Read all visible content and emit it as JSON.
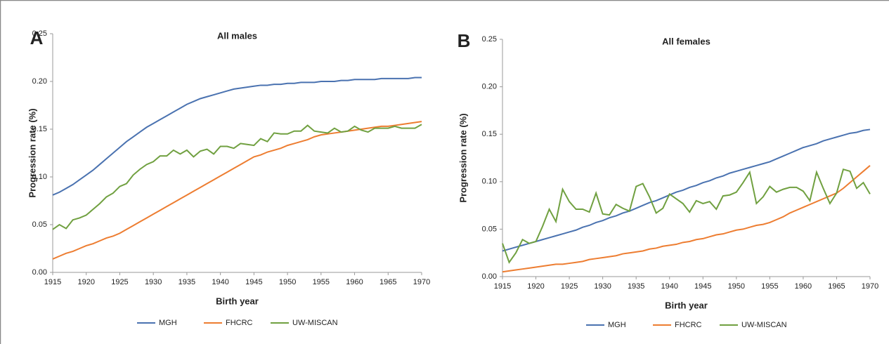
{
  "chart_data": [
    {
      "type": "line",
      "panel_label": "A",
      "title": "All males",
      "x_label": "Birth year",
      "y_label": "Progression rate (%)",
      "legend": "bottom",
      "x": [
        1915,
        1916,
        1917,
        1918,
        1919,
        1920,
        1921,
        1922,
        1923,
        1924,
        1925,
        1926,
        1927,
        1928,
        1929,
        1930,
        1931,
        1932,
        1933,
        1934,
        1935,
        1936,
        1937,
        1938,
        1939,
        1940,
        1941,
        1942,
        1943,
        1944,
        1945,
        1946,
        1947,
        1948,
        1949,
        1950,
        1951,
        1952,
        1953,
        1954,
        1955,
        1956,
        1957,
        1958,
        1959,
        1960,
        1961,
        1962,
        1963,
        1964,
        1965,
        1966,
        1967,
        1968,
        1969,
        1970
      ],
      "xlim": [
        1915,
        1970
      ],
      "xticks": [
        1915,
        1920,
        1925,
        1930,
        1935,
        1940,
        1945,
        1950,
        1955,
        1960,
        1965,
        1970
      ],
      "ylim": [
        0,
        0.25
      ],
      "yticks": [
        {
          "value": 0,
          "label": "0.00"
        },
        0.05,
        {
          "value": 0.1,
          "label": "0.10"
        },
        0.15,
        {
          "value": 0.2,
          "label": "0.20"
        },
        0.25
      ],
      "series": [
        {
          "name": "MGH",
          "color": "#4a72b0",
          "values": [
            0.081,
            0.084,
            0.088,
            0.092,
            0.097,
            0.102,
            0.107,
            0.113,
            0.119,
            0.125,
            0.131,
            0.137,
            0.142,
            0.147,
            0.152,
            0.156,
            0.16,
            0.164,
            0.168,
            0.172,
            0.176,
            0.179,
            0.182,
            0.184,
            0.186,
            0.188,
            0.19,
            0.192,
            0.193,
            0.194,
            0.195,
            0.196,
            0.196,
            0.197,
            0.197,
            0.198,
            0.198,
            0.199,
            0.199,
            0.199,
            0.2,
            0.2,
            0.2,
            0.201,
            0.201,
            0.202,
            0.202,
            0.202,
            0.202,
            0.203,
            0.203,
            0.203,
            0.203,
            0.203,
            0.204,
            0.204
          ]
        },
        {
          "name": "FHCRC",
          "color": "#ed7d31",
          "values": [
            0.014,
            0.017,
            0.02,
            0.022,
            0.025,
            0.028,
            0.03,
            0.033,
            0.036,
            0.038,
            0.041,
            0.045,
            0.049,
            0.053,
            0.057,
            0.061,
            0.065,
            0.069,
            0.073,
            0.077,
            0.081,
            0.085,
            0.089,
            0.093,
            0.097,
            0.101,
            0.105,
            0.109,
            0.113,
            0.117,
            0.121,
            0.123,
            0.126,
            0.128,
            0.13,
            0.133,
            0.135,
            0.137,
            0.139,
            0.142,
            0.144,
            0.145,
            0.146,
            0.147,
            0.148,
            0.149,
            0.15,
            0.151,
            0.152,
            0.153,
            0.153,
            0.154,
            0.155,
            0.156,
            0.157,
            0.158
          ]
        },
        {
          "name": "UW-MISCAN",
          "color": "#70a040",
          "values": [
            0.045,
            0.05,
            0.046,
            0.055,
            0.057,
            0.06,
            0.066,
            0.072,
            0.079,
            0.083,
            0.09,
            0.093,
            0.102,
            0.108,
            0.113,
            0.116,
            0.122,
            0.122,
            0.128,
            0.124,
            0.128,
            0.121,
            0.127,
            0.129,
            0.124,
            0.132,
            0.132,
            0.13,
            0.135,
            0.134,
            0.133,
            0.14,
            0.137,
            0.146,
            0.145,
            0.145,
            0.148,
            0.148,
            0.154,
            0.148,
            0.147,
            0.146,
            0.151,
            0.147,
            0.148,
            0.153,
            0.149,
            0.147,
            0.151,
            0.151,
            0.151,
            0.153,
            0.151,
            0.151,
            0.151,
            0.155
          ]
        }
      ]
    },
    {
      "type": "line",
      "panel_label": "B",
      "title": "All females",
      "x_label": "Birth year",
      "y_label": "Progression rate (%)",
      "legend": "bottom",
      "x": [
        1915,
        1916,
        1917,
        1918,
        1919,
        1920,
        1921,
        1922,
        1923,
        1924,
        1925,
        1926,
        1927,
        1928,
        1929,
        1930,
        1931,
        1932,
        1933,
        1934,
        1935,
        1936,
        1937,
        1938,
        1939,
        1940,
        1941,
        1942,
        1943,
        1944,
        1945,
        1946,
        1947,
        1948,
        1949,
        1950,
        1951,
        1952,
        1953,
        1954,
        1955,
        1956,
        1957,
        1958,
        1959,
        1960,
        1961,
        1962,
        1963,
        1964,
        1965,
        1966,
        1967,
        1968,
        1969,
        1970
      ],
      "xlim": [
        1915,
        1970
      ],
      "xticks": [
        1915,
        1920,
        1925,
        1930,
        1935,
        1940,
        1945,
        1950,
        1955,
        1960,
        1965,
        1970
      ],
      "ylim": [
        0,
        0.25
      ],
      "yticks": [
        {
          "value": 0,
          "label": "0.00"
        },
        0.05,
        {
          "value": 0.1,
          "label": "0.10"
        },
        0.15,
        {
          "value": 0.2,
          "label": "0.20"
        },
        0.25
      ],
      "series": [
        {
          "name": "MGH",
          "color": "#4a72b0",
          "values": [
            0.027,
            0.029,
            0.031,
            0.033,
            0.035,
            0.037,
            0.039,
            0.041,
            0.043,
            0.045,
            0.047,
            0.049,
            0.052,
            0.054,
            0.057,
            0.059,
            0.062,
            0.064,
            0.067,
            0.069,
            0.072,
            0.075,
            0.078,
            0.08,
            0.083,
            0.086,
            0.089,
            0.091,
            0.094,
            0.096,
            0.099,
            0.101,
            0.104,
            0.106,
            0.109,
            0.111,
            0.113,
            0.115,
            0.117,
            0.119,
            0.121,
            0.124,
            0.127,
            0.13,
            0.133,
            0.136,
            0.138,
            0.14,
            0.143,
            0.145,
            0.147,
            0.149,
            0.151,
            0.152,
            0.154,
            0.155
          ]
        },
        {
          "name": "FHCRC",
          "color": "#ed7d31",
          "values": [
            0.005,
            0.006,
            0.007,
            0.008,
            0.009,
            0.01,
            0.011,
            0.012,
            0.013,
            0.013,
            0.014,
            0.015,
            0.016,
            0.018,
            0.019,
            0.02,
            0.021,
            0.022,
            0.024,
            0.025,
            0.026,
            0.027,
            0.029,
            0.03,
            0.032,
            0.033,
            0.034,
            0.036,
            0.037,
            0.039,
            0.04,
            0.042,
            0.044,
            0.045,
            0.047,
            0.049,
            0.05,
            0.052,
            0.054,
            0.055,
            0.057,
            0.06,
            0.063,
            0.067,
            0.07,
            0.073,
            0.076,
            0.079,
            0.082,
            0.085,
            0.088,
            0.093,
            0.099,
            0.105,
            0.111,
            0.117
          ]
        },
        {
          "name": "UW-MISCAN",
          "color": "#70a040",
          "values": [
            0.035,
            0.015,
            0.025,
            0.039,
            0.035,
            0.037,
            0.053,
            0.071,
            0.058,
            0.092,
            0.079,
            0.071,
            0.071,
            0.068,
            0.088,
            0.066,
            0.065,
            0.076,
            0.072,
            0.069,
            0.095,
            0.098,
            0.084,
            0.067,
            0.072,
            0.087,
            0.082,
            0.077,
            0.068,
            0.08,
            0.077,
            0.079,
            0.071,
            0.085,
            0.086,
            0.089,
            0.099,
            0.11,
            0.077,
            0.084,
            0.095,
            0.089,
            0.092,
            0.094,
            0.094,
            0.09,
            0.08,
            0.11,
            0.093,
            0.077,
            0.088,
            0.113,
            0.111,
            0.093,
            0.099,
            0.087
          ]
        }
      ]
    }
  ]
}
